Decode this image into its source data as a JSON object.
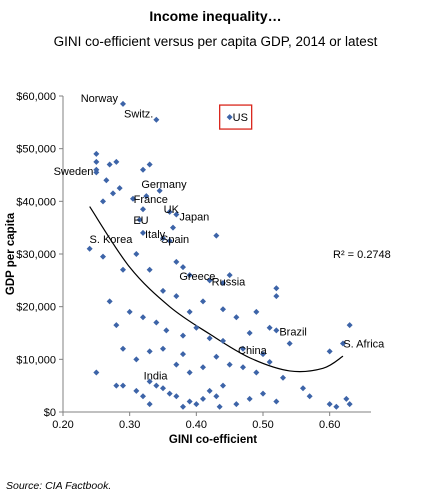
{
  "header": {
    "title": "Income inequality…",
    "subtitle": "GINI co-efficient versus per capita GDP, 2014 or latest"
  },
  "footer": {
    "source": "Source: CIA Factbook."
  },
  "chart_data": {
    "type": "scatter",
    "title": "Income inequality…",
    "subtitle": "GINI co-efficient versus per capita GDP, 2014 or latest",
    "xlabel": "GINI co-efficient",
    "ylabel": "GDP per capita",
    "xlim": [
      0.2,
      0.65
    ],
    "ylim": [
      0,
      60000
    ],
    "xticks": [
      0.2,
      0.3,
      0.4,
      0.5,
      0.6
    ],
    "xtick_labels": [
      "0.20",
      "0.30",
      "0.40",
      "0.50",
      "0.60"
    ],
    "yticks": [
      0,
      10000,
      20000,
      30000,
      40000,
      50000,
      60000
    ],
    "ytick_labels": [
      "$0",
      "$10,000",
      "$20,000",
      "$30,000",
      "$40,000",
      "$50,000",
      "$60,000"
    ],
    "grid": false,
    "marker_color": "#3d64a8",
    "trendline": {
      "type": "polynomial",
      "color": "#000000",
      "r_squared_label": "R² = 0.2748",
      "points": [
        [
          0.24,
          39000
        ],
        [
          0.3,
          27500
        ],
        [
          0.36,
          20000
        ],
        [
          0.42,
          14800
        ],
        [
          0.48,
          10300
        ],
        [
          0.54,
          7800
        ],
        [
          0.59,
          8300
        ],
        [
          0.62,
          10600
        ]
      ]
    },
    "highlight": {
      "label": "US",
      "color": "#d9261c"
    },
    "labeled_points": [
      {
        "label": "Norway",
        "x": 0.29,
        "y": 58500
      },
      {
        "label": "Switz.",
        "x": 0.34,
        "y": 55500
      },
      {
        "label": "US",
        "x": 0.45,
        "y": 56000
      },
      {
        "label": "Sweden",
        "x": 0.25,
        "y": 45800
      },
      {
        "label": "Germany",
        "x": 0.325,
        "y": 41000
      },
      {
        "label": "France",
        "x": 0.315,
        "y": 38500
      },
      {
        "label": "EU",
        "x": 0.31,
        "y": 36500
      },
      {
        "label": "UK",
        "x": 0.36,
        "y": 38000
      },
      {
        "label": "Japan",
        "x": 0.37,
        "y": 37500
      },
      {
        "label": "Italy",
        "x": 0.32,
        "y": 34000
      },
      {
        "label": "S. Korea",
        "x": 0.31,
        "y": 33000
      },
      {
        "label": "Spain",
        "x": 0.35,
        "y": 33000
      },
      {
        "label": "Greece",
        "x": 0.37,
        "y": 26000
      },
      {
        "label": "Russia",
        "x": 0.42,
        "y": 25000
      },
      {
        "label": "China",
        "x": 0.47,
        "y": 12000
      },
      {
        "label": "Brazil",
        "x": 0.52,
        "y": 15500
      },
      {
        "label": "S. Africa",
        "x": 0.625,
        "y": 13000
      },
      {
        "label": "India",
        "x": 0.33,
        "y": 5800
      }
    ],
    "points": [
      [
        0.29,
        58500
      ],
      [
        0.34,
        55500
      ],
      [
        0.45,
        56000
      ],
      [
        0.25,
        49000
      ],
      [
        0.25,
        47500
      ],
      [
        0.25,
        46000
      ],
      [
        0.25,
        45500
      ],
      [
        0.265,
        44000
      ],
      [
        0.27,
        47000
      ],
      [
        0.28,
        47500
      ],
      [
        0.285,
        42500
      ],
      [
        0.32,
        46000
      ],
      [
        0.33,
        47000
      ],
      [
        0.345,
        42000
      ],
      [
        0.26,
        40000
      ],
      [
        0.275,
        41500
      ],
      [
        0.305,
        40500
      ],
      [
        0.315,
        36500
      ],
      [
        0.32,
        38500
      ],
      [
        0.325,
        41000
      ],
      [
        0.36,
        38000
      ],
      [
        0.37,
        37500
      ],
      [
        0.365,
        35000
      ],
      [
        0.32,
        34000
      ],
      [
        0.35,
        33000
      ],
      [
        0.36,
        32500
      ],
      [
        0.43,
        33500
      ],
      [
        0.37,
        28500
      ],
      [
        0.38,
        27500
      ],
      [
        0.39,
        26000
      ],
      [
        0.42,
        25000
      ],
      [
        0.44,
        24500
      ],
      [
        0.45,
        26000
      ],
      [
        0.52,
        23500
      ],
      [
        0.52,
        22000
      ],
      [
        0.24,
        31000
      ],
      [
        0.26,
        29500
      ],
      [
        0.29,
        27000
      ],
      [
        0.31,
        30000
      ],
      [
        0.33,
        27000
      ],
      [
        0.35,
        23000
      ],
      [
        0.37,
        22000
      ],
      [
        0.39,
        19000
      ],
      [
        0.41,
        21000
      ],
      [
        0.44,
        19500
      ],
      [
        0.46,
        18000
      ],
      [
        0.49,
        19000
      ],
      [
        0.51,
        16000
      ],
      [
        0.27,
        21000
      ],
      [
        0.28,
        16500
      ],
      [
        0.3,
        19000
      ],
      [
        0.32,
        18000
      ],
      [
        0.34,
        17000
      ],
      [
        0.355,
        15500
      ],
      [
        0.38,
        14500
      ],
      [
        0.4,
        16000
      ],
      [
        0.42,
        14000
      ],
      [
        0.44,
        13500
      ],
      [
        0.47,
        12000
      ],
      [
        0.48,
        15000
      ],
      [
        0.5,
        11000
      ],
      [
        0.52,
        15500
      ],
      [
        0.54,
        13000
      ],
      [
        0.62,
        13000
      ],
      [
        0.63,
        16500
      ],
      [
        0.6,
        11500
      ],
      [
        0.25,
        7500
      ],
      [
        0.28,
        5000
      ],
      [
        0.29,
        12000
      ],
      [
        0.31,
        10000
      ],
      [
        0.33,
        11500
      ],
      [
        0.35,
        12000
      ],
      [
        0.37,
        9000
      ],
      [
        0.38,
        11000
      ],
      [
        0.39,
        7500
      ],
      [
        0.41,
        8500
      ],
      [
        0.43,
        10500
      ],
      [
        0.45,
        9000
      ],
      [
        0.47,
        8500
      ],
      [
        0.49,
        7500
      ],
      [
        0.51,
        9500
      ],
      [
        0.53,
        6500
      ],
      [
        0.29,
        5000
      ],
      [
        0.31,
        4000
      ],
      [
        0.32,
        3000
      ],
      [
        0.33,
        5800
      ],
      [
        0.34,
        5000
      ],
      [
        0.35,
        4500
      ],
      [
        0.36,
        3500
      ],
      [
        0.37,
        3000
      ],
      [
        0.39,
        2000
      ],
      [
        0.4,
        1500
      ],
      [
        0.41,
        2500
      ],
      [
        0.42,
        4000
      ],
      [
        0.43,
        3000
      ],
      [
        0.44,
        5000
      ],
      [
        0.46,
        1500
      ],
      [
        0.48,
        2500
      ],
      [
        0.5,
        3500
      ],
      [
        0.52,
        2000
      ],
      [
        0.56,
        4500
      ],
      [
        0.57,
        3000
      ],
      [
        0.6,
        1500
      ],
      [
        0.61,
        1000
      ],
      [
        0.625,
        2500
      ],
      [
        0.63,
        1500
      ],
      [
        0.33,
        1500
      ],
      [
        0.38,
        1000
      ],
      [
        0.435,
        1000
      ]
    ]
  }
}
